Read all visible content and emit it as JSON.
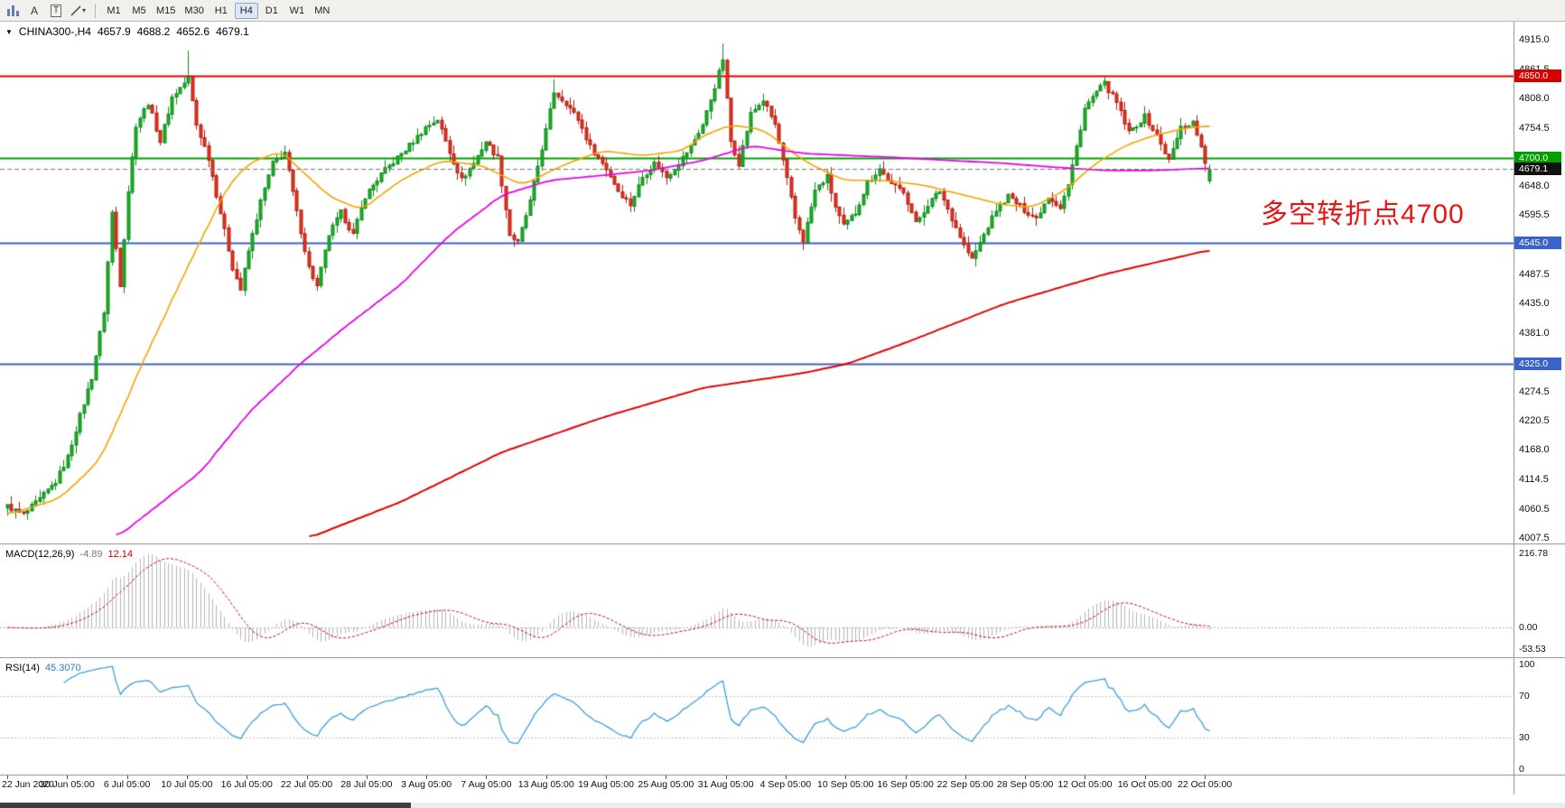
{
  "toolbar": {
    "tools": {
      "a_label": "A",
      "t_label": "T",
      "caret": "▾"
    },
    "timeframes": [
      {
        "label": "M1",
        "active": false
      },
      {
        "label": "M5",
        "active": false
      },
      {
        "label": "M15",
        "active": false
      },
      {
        "label": "M30",
        "active": false
      },
      {
        "label": "H1",
        "active": false
      },
      {
        "label": "H4",
        "active": true
      },
      {
        "label": "D1",
        "active": false
      },
      {
        "label": "W1",
        "active": false
      },
      {
        "label": "MN",
        "active": false
      }
    ]
  },
  "symbol_header": {
    "collapse_icon": "▼",
    "symbol": "CHINA300-,H4",
    "open": "4657.9",
    "high": "4688.2",
    "low": "4652.6",
    "close": "4679.1"
  },
  "annotation": {
    "text": "多空转折点4700",
    "color": "#e81414"
  },
  "price_axis": {
    "labels": [
      "4915.0",
      "4861.5",
      "4808.0",
      "4754.5",
      "4648.0",
      "4595.5",
      "4487.5",
      "4435.0",
      "4381.0",
      "4274.5",
      "4220.5",
      "4168.0",
      "4114.5",
      "4060.5",
      "4007.5"
    ],
    "badges": [
      {
        "text": "4850.0",
        "value": 4850.0,
        "color": "#d60000"
      },
      {
        "text": "4700.0",
        "value": 4700.0,
        "color": "#00a000"
      },
      {
        "text": "4679.1",
        "value": 4679.1,
        "color": "#111111"
      },
      {
        "text": "4545.0",
        "value": 4545.0,
        "color": "#3b62c8"
      },
      {
        "text": "4325.0",
        "value": 4325.0,
        "color": "#3b62c8"
      }
    ]
  },
  "hlines": [
    {
      "price": 4850.0,
      "color": "#dd0000",
      "style": "solid"
    },
    {
      "price": 4700.0,
      "color": "#00a000",
      "style": "solid"
    },
    {
      "price": 4545.0,
      "color": "#3b62c8",
      "style": "solid"
    },
    {
      "price": 4325.0,
      "color": "#3b62c8",
      "style": "solid"
    },
    {
      "price": 4679.1,
      "color": "#777777",
      "style": "dash"
    }
  ],
  "time_axis": {
    "labels": [
      "22 Jun 2020",
      "30 Jun 05:00",
      "6 Jul 05:00",
      "10 Jul 05:00",
      "16 Jul 05:00",
      "22 Jul 05:00",
      "28 Jul 05:00",
      "3 Aug 05:00",
      "7 Aug 05:00",
      "13 Aug 05:00",
      "19 Aug 05:00",
      "25 Aug 05:00",
      "31 Aug 05:00",
      "4 Sep 05:00",
      "10 Sep 05:00",
      "16 Sep 05:00",
      "22 Sep 05:00",
      "28 Sep 05:00",
      "12 Oct 05:00",
      "16 Oct 05:00",
      "22 Oct 05:00"
    ]
  },
  "chart_data": {
    "type": "candlestick",
    "symbol": "CHINA300-",
    "timeframe": "H4",
    "bars": 300,
    "y_range": [
      4007.5,
      4915.0
    ],
    "key_levels": [
      4850.0,
      4700.0,
      4545.0,
      4325.0
    ],
    "current_price": 4679.1,
    "last_bar": {
      "open": 4657.9,
      "high": 4688.2,
      "low": 4652.6,
      "close": 4679.1
    },
    "candle_colors": {
      "up_fill": "#1db027",
      "up_stroke": "#0c8a1a",
      "down_fill": "#ea3323",
      "down_stroke": "#b01a0d"
    },
    "close_anchors": [
      [
        0,
        4065
      ],
      [
        4,
        4050
      ],
      [
        8,
        4078
      ],
      [
        12,
        4110
      ],
      [
        15,
        4155
      ],
      [
        18,
        4230
      ],
      [
        21,
        4300
      ],
      [
        24,
        4420
      ],
      [
        26,
        4600
      ],
      [
        28,
        4470
      ],
      [
        30,
        4640
      ],
      [
        32,
        4760
      ],
      [
        35,
        4800
      ],
      [
        38,
        4730
      ],
      [
        41,
        4810
      ],
      [
        45,
        4845
      ],
      [
        47,
        4760
      ],
      [
        50,
        4700
      ],
      [
        53,
        4600
      ],
      [
        56,
        4500
      ],
      [
        58,
        4460
      ],
      [
        60,
        4530
      ],
      [
        63,
        4620
      ],
      [
        66,
        4690
      ],
      [
        69,
        4710
      ],
      [
        72,
        4600
      ],
      [
        75,
        4500
      ],
      [
        77,
        4465
      ],
      [
        80,
        4560
      ],
      [
        83,
        4600
      ],
      [
        86,
        4560
      ],
      [
        89,
        4630
      ],
      [
        93,
        4670
      ],
      [
        97,
        4700
      ],
      [
        101,
        4730
      ],
      [
        104,
        4755
      ],
      [
        107,
        4770
      ],
      [
        110,
        4710
      ],
      [
        113,
        4660
      ],
      [
        116,
        4690
      ],
      [
        119,
        4730
      ],
      [
        122,
        4700
      ],
      [
        125,
        4560
      ],
      [
        127,
        4545
      ],
      [
        130,
        4620
      ],
      [
        134,
        4750
      ],
      [
        136,
        4820
      ],
      [
        139,
        4800
      ],
      [
        142,
        4770
      ],
      [
        145,
        4720
      ],
      [
        149,
        4680
      ],
      [
        152,
        4640
      ],
      [
        155,
        4615
      ],
      [
        158,
        4665
      ],
      [
        161,
        4690
      ],
      [
        164,
        4665
      ],
      [
        167,
        4690
      ],
      [
        170,
        4720
      ],
      [
        173,
        4760
      ],
      [
        176,
        4830
      ],
      [
        178,
        4880
      ],
      [
        180,
        4730
      ],
      [
        182,
        4690
      ],
      [
        185,
        4780
      ],
      [
        188,
        4805
      ],
      [
        191,
        4760
      ],
      [
        194,
        4660
      ],
      [
        196,
        4590
      ],
      [
        198,
        4550
      ],
      [
        201,
        4640
      ],
      [
        204,
        4665
      ],
      [
        206,
        4610
      ],
      [
        208,
        4575
      ],
      [
        211,
        4600
      ],
      [
        214,
        4655
      ],
      [
        217,
        4680
      ],
      [
        220,
        4650
      ],
      [
        223,
        4640
      ],
      [
        226,
        4580
      ],
      [
        229,
        4615
      ],
      [
        232,
        4640
      ],
      [
        235,
        4590
      ],
      [
        238,
        4540
      ],
      [
        240,
        4515
      ],
      [
        243,
        4560
      ],
      [
        246,
        4605
      ],
      [
        249,
        4630
      ],
      [
        253,
        4605
      ],
      [
        256,
        4590
      ],
      [
        259,
        4630
      ],
      [
        262,
        4610
      ],
      [
        264,
        4650
      ],
      [
        266,
        4720
      ],
      [
        268,
        4790
      ],
      [
        271,
        4820
      ],
      [
        273,
        4835
      ],
      [
        276,
        4800
      ],
      [
        279,
        4745
      ],
      [
        283,
        4775
      ],
      [
        286,
        4740
      ],
      [
        289,
        4695
      ],
      [
        292,
        4755
      ],
      [
        295,
        4765
      ],
      [
        297,
        4720
      ],
      [
        298,
        4690
      ],
      [
        299,
        4679.1
      ]
    ],
    "wick_overrides": [
      [
        45,
        4895
      ],
      [
        136,
        4843
      ],
      [
        178,
        4908
      ]
    ],
    "overlays": [
      {
        "name": "ma-fast",
        "color": "#f5a300",
        "width": 1.6,
        "anchors": [
          [
            0,
            4050
          ],
          [
            13,
            4080
          ],
          [
            23,
            4150
          ],
          [
            35,
            4350
          ],
          [
            48,
            4550
          ],
          [
            55,
            4650
          ],
          [
            60,
            4690
          ],
          [
            68,
            4712
          ],
          [
            80,
            4630
          ],
          [
            88,
            4605
          ],
          [
            98,
            4660
          ],
          [
            108,
            4695
          ],
          [
            118,
            4686
          ],
          [
            128,
            4650
          ],
          [
            138,
            4686
          ],
          [
            148,
            4713
          ],
          [
            158,
            4704
          ],
          [
            168,
            4713
          ],
          [
            173,
            4740
          ],
          [
            180,
            4760
          ],
          [
            188,
            4751
          ],
          [
            198,
            4695
          ],
          [
            208,
            4659
          ],
          [
            218,
            4659
          ],
          [
            228,
            4650
          ],
          [
            238,
            4632
          ],
          [
            248,
            4614
          ],
          [
            255,
            4610
          ],
          [
            263,
            4640
          ],
          [
            270,
            4686
          ],
          [
            278,
            4722
          ],
          [
            285,
            4740
          ],
          [
            293,
            4754
          ],
          [
            299,
            4758
          ]
        ]
      },
      {
        "name": "ma-mid",
        "color": "#e800e8",
        "width": 1.8,
        "anchors": [
          [
            27,
            4008
          ],
          [
            48,
            4128
          ],
          [
            60,
            4236
          ],
          [
            73,
            4326
          ],
          [
            85,
            4398
          ],
          [
            98,
            4470
          ],
          [
            110,
            4560
          ],
          [
            123,
            4632
          ],
          [
            135,
            4659
          ],
          [
            148,
            4668
          ],
          [
            160,
            4677
          ],
          [
            173,
            4695
          ],
          [
            185,
            4722
          ],
          [
            198,
            4708
          ],
          [
            210,
            4704
          ],
          [
            223,
            4700
          ],
          [
            235,
            4695
          ],
          [
            248,
            4690
          ],
          [
            260,
            4683
          ],
          [
            273,
            4677
          ],
          [
            285,
            4677
          ],
          [
            299,
            4681
          ]
        ]
      },
      {
        "name": "ma-slow",
        "color": "#e00000",
        "width": 2,
        "anchors": [
          [
            75,
            4008
          ],
          [
            98,
            4074
          ],
          [
            123,
            4164
          ],
          [
            148,
            4227
          ],
          [
            173,
            4281
          ],
          [
            198,
            4308
          ],
          [
            209,
            4325
          ],
          [
            223,
            4362
          ],
          [
            248,
            4434
          ],
          [
            273,
            4488
          ],
          [
            299,
            4532
          ]
        ]
      }
    ],
    "indicators": [
      {
        "name": "MACD",
        "label": "MACD(12,26,9)",
        "values": [
          "-4.89",
          "12.14"
        ],
        "params": [
          12,
          26,
          9
        ],
        "axis_labels": [
          "216.78",
          "0.00",
          "-53.53"
        ],
        "histogram_color": "#b4b4b4",
        "signal_color": "#d00000"
      },
      {
        "name": "RSI",
        "label": "RSI(14)",
        "value": "45.3070",
        "period": 14,
        "axis_labels": [
          "100",
          "70",
          "30",
          "0"
        ],
        "levels": [
          70,
          30
        ],
        "line_color": "#3e9ddd",
        "level_color": "#c0c0c0"
      }
    ]
  }
}
